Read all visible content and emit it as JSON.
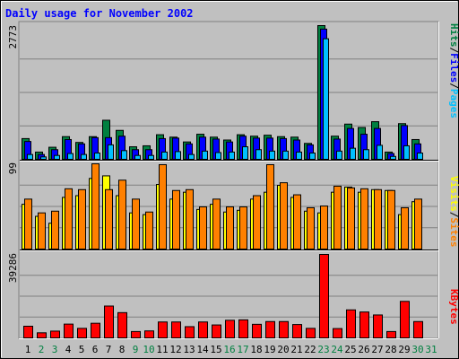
{
  "title": "Daily usage for November 2002",
  "colors": {
    "background": "#c0c0c0",
    "panel": "#c0c0c0",
    "title": "#0000ff",
    "pages": "#00c0ff",
    "files": "#0000ff",
    "hits": "#008040",
    "sites": "#ff8000",
    "visits": "#ffff00",
    "kbytes": "#ff0000",
    "weekday_label": "#000000",
    "weekend_label": "#008040",
    "separator": "#000000",
    "gridline": "#808080"
  },
  "chart_data": [
    {
      "type": "bar",
      "ylabel_top": "2773",
      "ymax": 2773,
      "legend": [
        {
          "name": "Pages",
          "color": "#00c0ff"
        },
        {
          "name": "Files",
          "color": "#0000ff"
        },
        {
          "name": "Hits",
          "color": "#008040"
        }
      ],
      "categories": [
        "1",
        "2",
        "3",
        "4",
        "5",
        "6",
        "7",
        "8",
        "9",
        "10",
        "11",
        "12",
        "13",
        "14",
        "15",
        "16",
        "17",
        "18",
        "19",
        "20",
        "21",
        "22",
        "23",
        "24",
        "25",
        "26",
        "27",
        "28",
        "29",
        "30",
        "31"
      ],
      "series": [
        {
          "name": "Hits",
          "values": [
            430,
            150,
            250,
            470,
            350,
            470,
            810,
            600,
            260,
            280,
            510,
            460,
            360,
            520,
            460,
            400,
            510,
            480,
            500,
            470,
            460,
            330,
            2773,
            480,
            730,
            660,
            780,
            150,
            740,
            410,
            0
          ]
        },
        {
          "name": "Files",
          "values": [
            370,
            100,
            200,
            410,
            320,
            450,
            450,
            480,
            200,
            200,
            430,
            440,
            320,
            460,
            420,
            360,
            480,
            440,
            440,
            430,
            400,
            300,
            2700,
            420,
            640,
            520,
            640,
            120,
            700,
            320,
            0
          ]
        },
        {
          "name": "Pages",
          "values": [
            100,
            50,
            80,
            120,
            100,
            130,
            300,
            180,
            80,
            80,
            150,
            160,
            100,
            170,
            140,
            150,
            260,
            200,
            170,
            170,
            150,
            130,
            2500,
            170,
            230,
            200,
            290,
            60,
            280,
            130,
            0
          ]
        }
      ]
    },
    {
      "type": "bar",
      "ylabel_top": "99",
      "ymax": 99,
      "legend": [
        {
          "name": "Sites",
          "color": "#ff8000"
        },
        {
          "name": "Visits",
          "color": "#ffff00"
        }
      ],
      "categories": [
        "1",
        "2",
        "3",
        "4",
        "5",
        "6",
        "7",
        "8",
        "9",
        "10",
        "11",
        "12",
        "13",
        "14",
        "15",
        "16",
        "17",
        "18",
        "19",
        "20",
        "21",
        "22",
        "23",
        "24",
        "25",
        "26",
        "27",
        "28",
        "29",
        "30",
        "31"
      ],
      "series": [
        {
          "name": "Sites",
          "values": [
            58,
            42,
            44,
            70,
            69,
            99,
            69,
            80,
            58,
            43,
            98,
            68,
            69,
            49,
            58,
            49,
            49,
            62,
            98,
            77,
            63,
            48,
            50,
            73,
            71,
            70,
            69,
            68,
            48,
            58,
            0
          ]
        },
        {
          "name": "Visits",
          "values": [
            52,
            38,
            30,
            60,
            62,
            82,
            85,
            62,
            42,
            40,
            75,
            58,
            66,
            46,
            52,
            43,
            45,
            58,
            66,
            74,
            60,
            44,
            42,
            66,
            72,
            66,
            69,
            68,
            40,
            55,
            0
          ]
        }
      ]
    },
    {
      "type": "bar",
      "ylabel_top": "39286",
      "ymax": 39286,
      "legend": [
        {
          "name": "KBytes",
          "color": "#ff0000"
        }
      ],
      "categories": [
        "1",
        "2",
        "3",
        "4",
        "5",
        "6",
        "7",
        "8",
        "9",
        "10",
        "11",
        "12",
        "13",
        "14",
        "15",
        "16",
        "17",
        "18",
        "19",
        "20",
        "21",
        "22",
        "23",
        "24",
        "25",
        "26",
        "27",
        "28",
        "29",
        "30",
        "31"
      ],
      "series": [
        {
          "name": "KBytes",
          "values": [
            5500,
            2400,
            3200,
            6500,
            4500,
            6900,
            15000,
            11900,
            3000,
            3300,
            7500,
            7500,
            5300,
            7500,
            6100,
            8300,
            8500,
            6400,
            7700,
            7700,
            6300,
            4500,
            39286,
            4400,
            13200,
            12200,
            10800,
            3000,
            17200,
            7700,
            0
          ]
        }
      ]
    }
  ],
  "days": [
    {
      "label": "1",
      "weekend": false
    },
    {
      "label": "2",
      "weekend": true
    },
    {
      "label": "3",
      "weekend": true
    },
    {
      "label": "4",
      "weekend": false
    },
    {
      "label": "5",
      "weekend": false
    },
    {
      "label": "6",
      "weekend": false
    },
    {
      "label": "7",
      "weekend": false
    },
    {
      "label": "8",
      "weekend": false
    },
    {
      "label": "9",
      "weekend": true
    },
    {
      "label": "10",
      "weekend": true
    },
    {
      "label": "11",
      "weekend": false
    },
    {
      "label": "12",
      "weekend": false
    },
    {
      "label": "13",
      "weekend": false
    },
    {
      "label": "14",
      "weekend": false
    },
    {
      "label": "15",
      "weekend": false
    },
    {
      "label": "16",
      "weekend": true
    },
    {
      "label": "17",
      "weekend": true
    },
    {
      "label": "18",
      "weekend": false
    },
    {
      "label": "19",
      "weekend": false
    },
    {
      "label": "20",
      "weekend": false
    },
    {
      "label": "21",
      "weekend": false
    },
    {
      "label": "22",
      "weekend": false
    },
    {
      "label": "23",
      "weekend": true
    },
    {
      "label": "24",
      "weekend": true
    },
    {
      "label": "25",
      "weekend": false
    },
    {
      "label": "26",
      "weekend": false
    },
    {
      "label": "27",
      "weekend": false
    },
    {
      "label": "28",
      "weekend": false
    },
    {
      "label": "29",
      "weekend": false
    },
    {
      "label": "30",
      "weekend": true
    },
    {
      "label": "31",
      "weekend": true
    }
  ]
}
